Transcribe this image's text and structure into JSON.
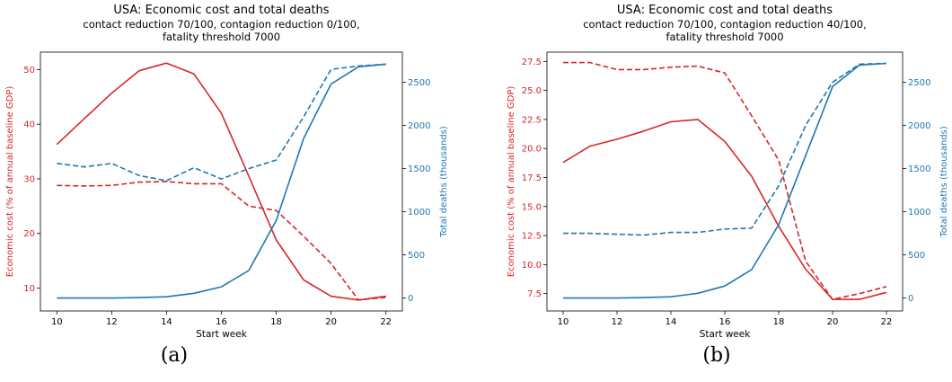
{
  "chart_data": [
    {
      "type": "line",
      "title": "USA: Economic cost and total deaths",
      "subtitle_lines": [
        "contact reduction 70/100, contagion reduction 0/100,",
        "fatality threshold 7000"
      ],
      "xlabel": "Start week",
      "ylabel_left": "Economic cost (% of annual baseline GDP)",
      "ylabel_right": "Total deaths (thousands)",
      "x": [
        10,
        11,
        12,
        13,
        14,
        15,
        16,
        17,
        18,
        19,
        20,
        21,
        22
      ],
      "xlim": [
        9.4,
        22.6
      ],
      "xticks": [
        10,
        12,
        14,
        16,
        18,
        20,
        22
      ],
      "ylim_left": [
        5.8,
        53.2
      ],
      "yticks_left": [
        10,
        20,
        30,
        40,
        50
      ],
      "ylim_right": [
        -150,
        2850
      ],
      "yticks_right": [
        0,
        500,
        1000,
        1500,
        2000,
        2500
      ],
      "series": [
        {
          "axis": "left",
          "color": "#d62728",
          "style": "solid",
          "values": [
            36.3,
            41.0,
            45.7,
            49.8,
            51.2,
            49.2,
            42.0,
            30.5,
            18.8,
            11.5,
            8.5,
            7.8,
            8.5
          ]
        },
        {
          "axis": "left",
          "color": "#d62728",
          "style": "dashed",
          "values": [
            28.8,
            28.7,
            28.8,
            29.4,
            29.5,
            29.1,
            29.1,
            25.0,
            24.2,
            19.5,
            14.5,
            7.8,
            8.3
          ]
        },
        {
          "axis": "right",
          "color": "#1f77b4",
          "style": "solid",
          "values": [
            0,
            0,
            0,
            5,
            15,
            55,
            130,
            320,
            900,
            1850,
            2480,
            2680,
            2710
          ]
        },
        {
          "axis": "right",
          "color": "#1f77b4",
          "style": "dashed",
          "values": [
            1560,
            1520,
            1560,
            1420,
            1360,
            1510,
            1380,
            1500,
            1600,
            2100,
            2650,
            2690,
            2710
          ]
        }
      ],
      "caption": "(a)"
    },
    {
      "type": "line",
      "title": "USA: Economic cost and total deaths",
      "subtitle_lines": [
        "contact reduction 70/100, contagion reduction 40/100,",
        "fatality threshold 7000"
      ],
      "xlabel": "Start week",
      "ylabel_left": "Economic cost (% of annual baseline GDP)",
      "ylabel_right": "Total deaths (thousands)",
      "x": [
        10,
        11,
        12,
        13,
        14,
        15,
        16,
        17,
        18,
        19,
        20,
        21,
        22
      ],
      "xlim": [
        9.4,
        22.6
      ],
      "xticks": [
        10,
        12,
        14,
        16,
        18,
        20,
        22
      ],
      "ylim_left": [
        6.0,
        28.3
      ],
      "yticks_left": [
        7.5,
        10.0,
        12.5,
        15.0,
        17.5,
        20.0,
        22.5,
        25.0,
        27.5
      ],
      "ylim_right": [
        -150,
        2850
      ],
      "yticks_right": [
        0,
        500,
        1000,
        1500,
        2000,
        2500
      ],
      "series": [
        {
          "axis": "left",
          "color": "#d62728",
          "style": "solid",
          "values": [
            18.8,
            20.2,
            20.8,
            21.5,
            22.3,
            22.5,
            20.6,
            17.6,
            13.3,
            9.6,
            7.0,
            7.0,
            7.6
          ]
        },
        {
          "axis": "left",
          "color": "#d62728",
          "style": "dashed",
          "values": [
            27.4,
            27.4,
            26.8,
            26.8,
            27.0,
            27.1,
            26.5,
            22.8,
            19.0,
            10.3,
            7.0,
            7.5,
            8.1
          ]
        },
        {
          "axis": "right",
          "color": "#1f77b4",
          "style": "solid",
          "values": [
            0,
            0,
            0,
            5,
            15,
            55,
            140,
            330,
            850,
            1650,
            2450,
            2700,
            2720
          ]
        },
        {
          "axis": "right",
          "color": "#1f77b4",
          "style": "dashed",
          "values": [
            750,
            750,
            740,
            730,
            760,
            760,
            800,
            810,
            1300,
            2000,
            2500,
            2710,
            2720
          ]
        }
      ],
      "caption": "(b)"
    }
  ]
}
